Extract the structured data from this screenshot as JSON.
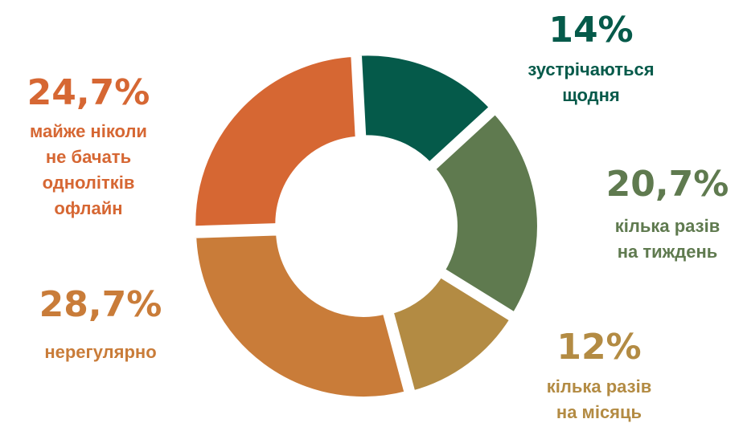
{
  "chart_data": {
    "type": "donut",
    "categories": [
      [
        "зустрічаються",
        "щодня"
      ],
      [
        "кілька разів",
        "на тиждень"
      ],
      [
        "кілька разів",
        "на місяць"
      ],
      [
        "нерегулярно"
      ],
      [
        "майже ніколи",
        "не бачать",
        "однолітків",
        "офлайн"
      ]
    ],
    "values": [
      14,
      20.7,
      12,
      28.7,
      24.7
    ],
    "value_labels": [
      "14%",
      "20,7%",
      "12%",
      "28,7%",
      "24,7%"
    ],
    "colors": [
      "#055a4a",
      "#5f7a4f",
      "#b38b43",
      "#c97c39",
      "#d66733"
    ]
  }
}
